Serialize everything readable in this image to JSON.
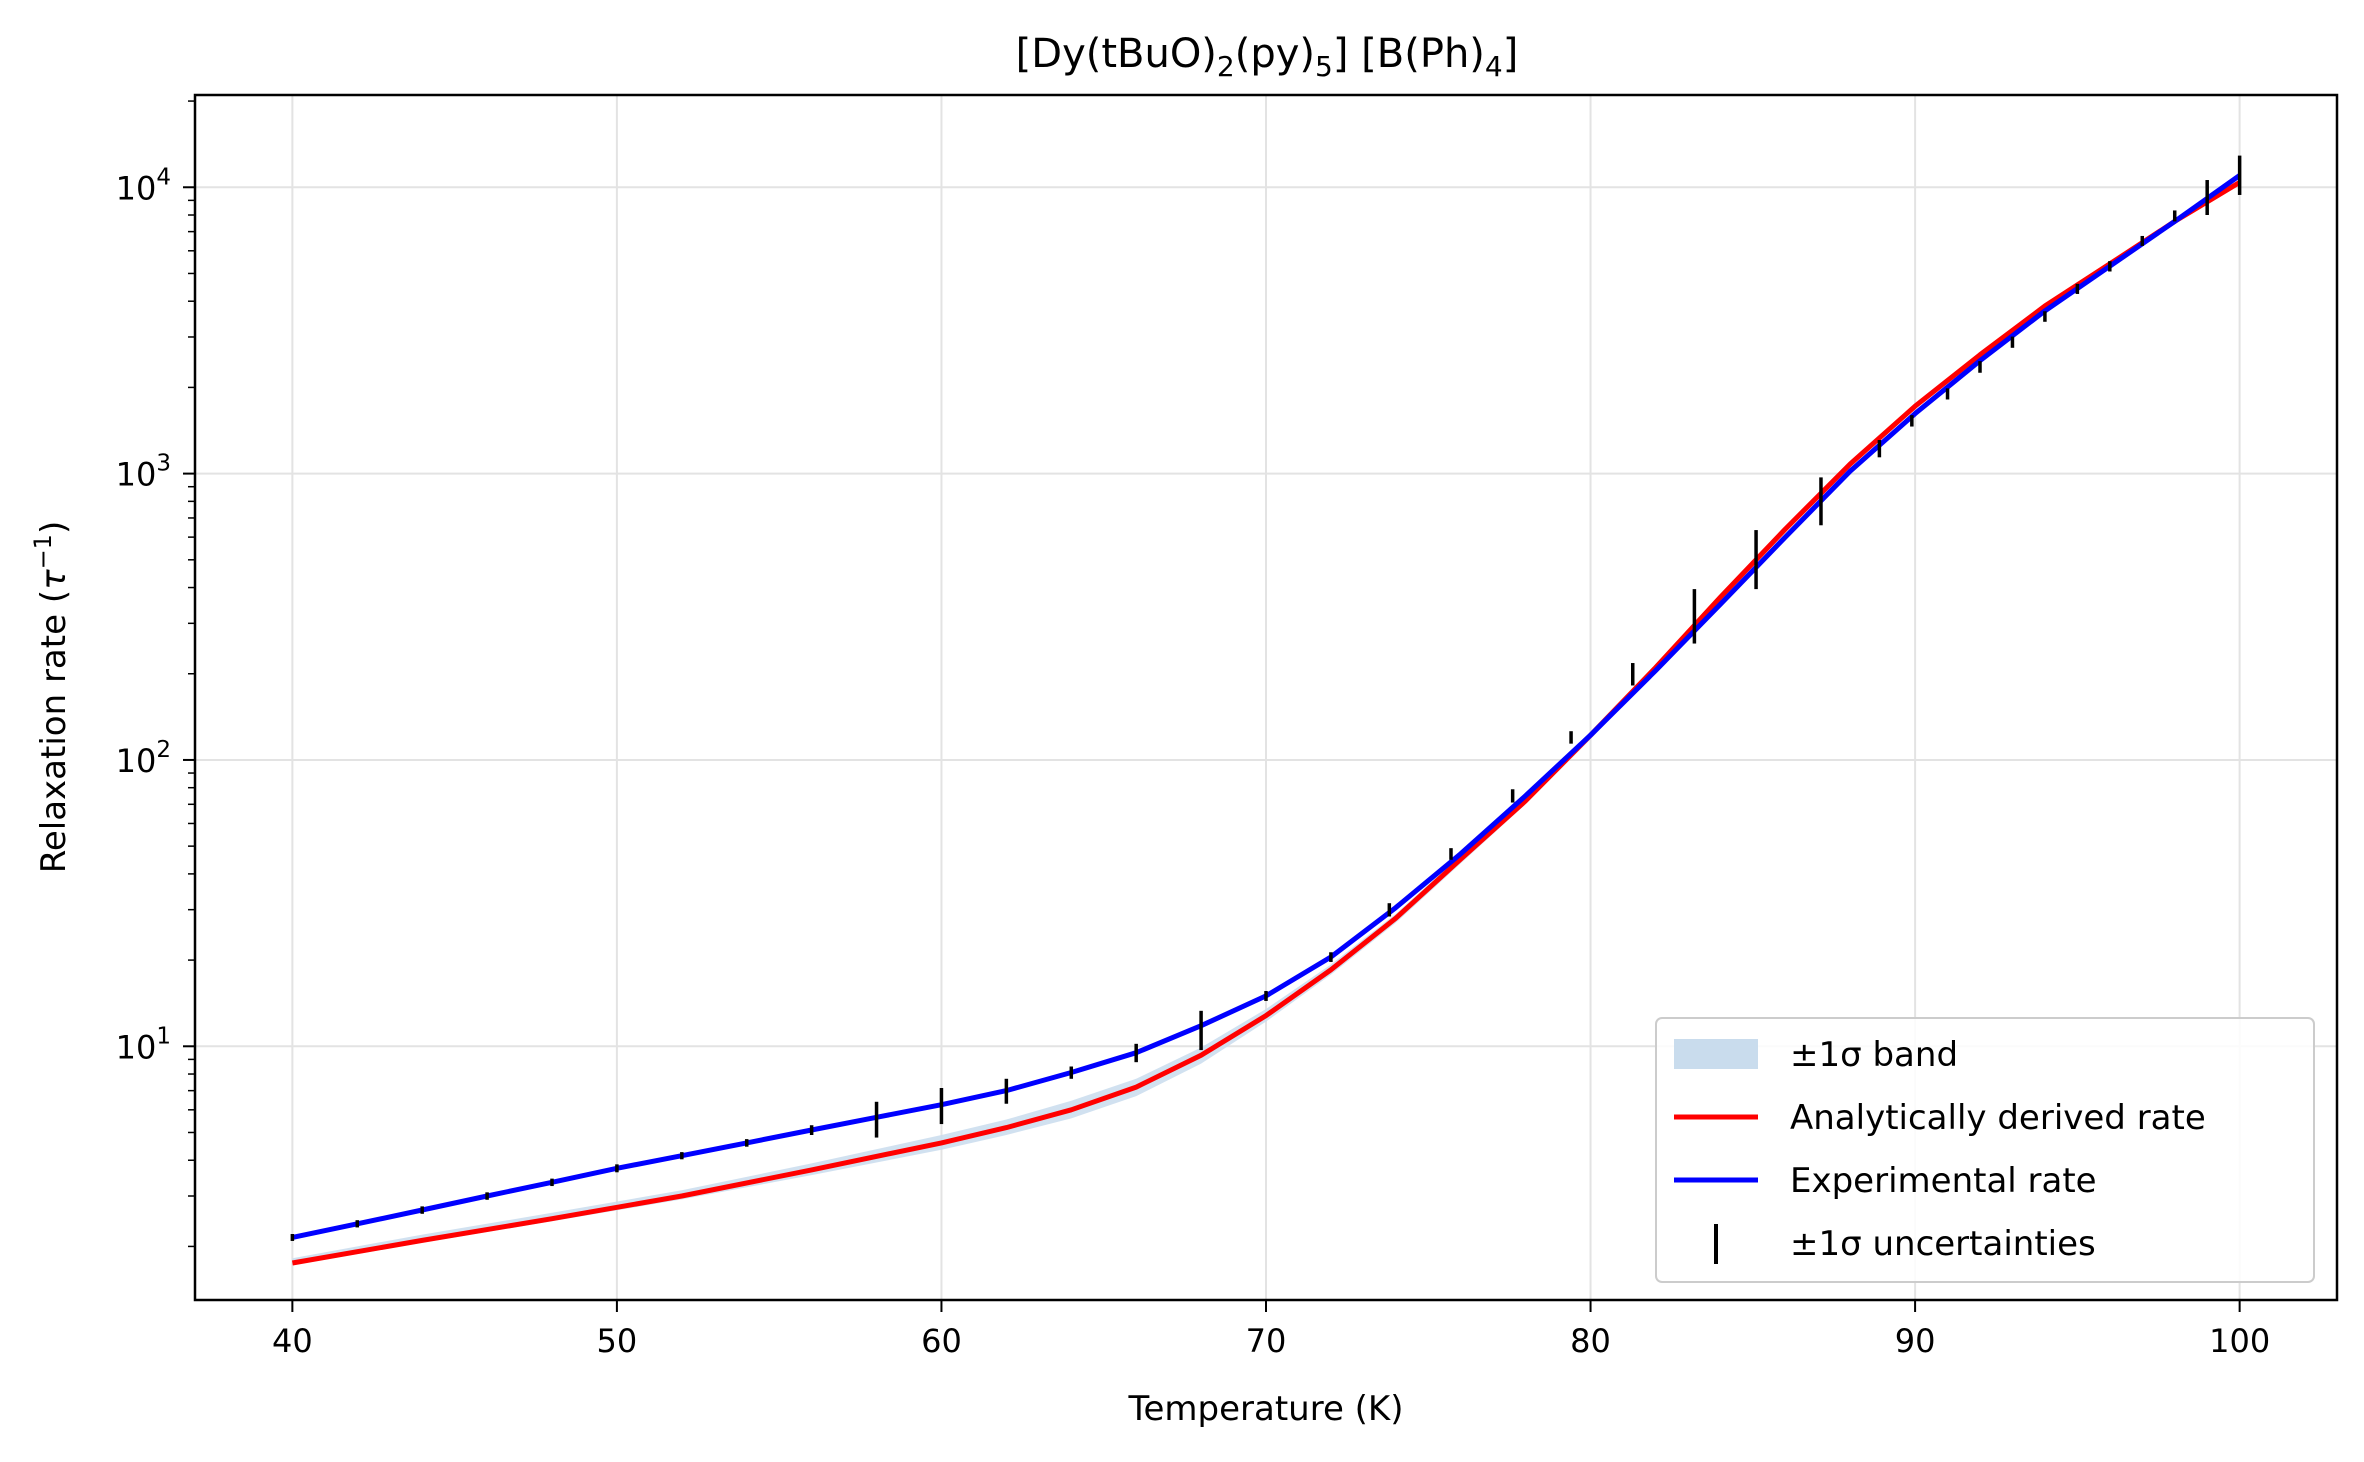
{
  "chart_data": {
    "type": "line",
    "title": {
      "base": "[Dy(tBuO)",
      "sub1": "2",
      "mid": "(py)",
      "sub2": "5",
      "tail": "] [B(Ph)",
      "sub3": "4",
      "end": "]"
    },
    "xlabel": "Temperature (K)",
    "ylabel": {
      "text": "Relaxation rate (",
      "sym": "τ",
      "sup": "−1",
      "close": ")"
    },
    "xlim": [
      37,
      103
    ],
    "ylim": [
      1.3,
      21000
    ],
    "yscale": "log",
    "grid": true,
    "legend_position": "lower-right",
    "x_ticks": [
      40,
      50,
      60,
      70,
      80,
      90,
      100
    ],
    "y_ticks": [
      {
        "value": 10,
        "base": "10",
        "exp": "1"
      },
      {
        "value": 100,
        "base": "10",
        "exp": "2"
      },
      {
        "value": 1000,
        "base": "10",
        "exp": "3"
      },
      {
        "value": 10000,
        "base": "10",
        "exp": "4"
      }
    ],
    "colors": {
      "band": "#c9dced",
      "analytic": "#ff0000",
      "experimental": "#0000ff",
      "errorbar": "#000000"
    },
    "series": [
      {
        "name": "Analytically derived rate",
        "x": [
          40,
          44,
          48,
          52,
          56,
          60,
          62,
          64,
          66,
          68,
          70,
          72,
          74,
          76,
          78,
          80,
          82,
          84,
          86,
          88,
          90,
          92,
          94,
          96,
          98,
          100
        ],
        "values": [
          1.75,
          2.1,
          2.5,
          3.0,
          3.7,
          4.6,
          5.2,
          6.0,
          7.2,
          9.3,
          12.8,
          18.5,
          28,
          45,
          72,
          122,
          210,
          370,
          640,
          1080,
          1720,
          2600,
          3850,
          5400,
          7600,
          10400
        ]
      },
      {
        "name": "Experimental rate",
        "x": [
          40,
          42,
          44,
          46,
          48,
          50,
          52,
          54,
          56,
          58,
          60,
          62,
          64,
          66,
          68,
          70,
          72,
          74,
          76,
          78,
          80,
          82,
          84,
          86,
          88,
          90,
          92,
          94,
          96,
          98,
          100
        ],
        "values": [
          2.15,
          2.4,
          2.68,
          3.0,
          3.35,
          3.75,
          4.15,
          4.6,
          5.1,
          5.65,
          6.25,
          7.0,
          8.1,
          9.5,
          11.8,
          15.0,
          20.5,
          30.5,
          47,
          75,
          122,
          205,
          350,
          600,
          1020,
          1620,
          2480,
          3700,
          5300,
          7600,
          11000
        ]
      }
    ],
    "band": {
      "name": "±1σ band",
      "x": [
        40,
        44,
        48,
        52,
        56,
        60,
        62,
        64,
        66,
        68,
        70,
        72,
        74,
        76,
        78,
        80,
        82,
        84,
        86,
        88,
        90,
        92,
        94,
        96,
        98,
        100
      ],
      "lower": [
        1.72,
        2.06,
        2.45,
        2.92,
        3.55,
        4.35,
        4.9,
        5.6,
        6.7,
        8.7,
        12.2,
        17.8,
        27,
        43.5,
        70,
        118,
        204,
        360,
        625,
        1055,
        1690,
        2560,
        3790,
        5330,
        7500,
        10250
      ],
      "upper": [
        1.82,
        2.2,
        2.62,
        3.14,
        3.9,
        4.9,
        5.55,
        6.45,
        7.7,
        9.9,
        13.5,
        19.3,
        29,
        46.5,
        74,
        126,
        216,
        380,
        655,
        1100,
        1760,
        2650,
        3920,
        5480,
        7720,
        10600
      ]
    },
    "errorbars": {
      "name": "±1σ uncertainties",
      "x": [
        40,
        42,
        44,
        46,
        48,
        50,
        52,
        54,
        56,
        58,
        60,
        62,
        64,
        66,
        68,
        70,
        72,
        73.8,
        75.7,
        77.6,
        79.4,
        81.3,
        83.2,
        85.1,
        87.1,
        88.9,
        89.9,
        91,
        92,
        93,
        94,
        95,
        96,
        97,
        98,
        99,
        100
      ],
      "y": [
        2.15,
        2.4,
        2.68,
        3.0,
        3.35,
        3.75,
        4.15,
        4.6,
        5.1,
        5.6,
        6.25,
        7.0,
        8.1,
        9.5,
        11.5,
        15.0,
        20.5,
        30,
        47,
        75,
        120,
        200,
        320,
        510,
        810,
        1220,
        1530,
        1900,
        2360,
        2880,
        3540,
        4420,
        5300,
        6500,
        7950,
        9300,
        11000
      ],
      "err_low": [
        0.06,
        0.07,
        0.08,
        0.09,
        0.1,
        0.12,
        0.12,
        0.14,
        0.2,
        0.8,
        0.9,
        0.7,
        0.4,
        0.7,
        1.8,
        0.6,
        0.8,
        1.6,
        2.2,
        4,
        6,
        18,
        65,
        115,
        150,
        80,
        70,
        85,
        110,
        130,
        150,
        180,
        220,
        260,
        350,
        1300,
        1600
      ],
      "err_high": [
        0.06,
        0.07,
        0.08,
        0.09,
        0.1,
        0.12,
        0.12,
        0.14,
        0.2,
        0.8,
        0.9,
        0.7,
        0.4,
        0.7,
        1.8,
        0.6,
        0.8,
        1.6,
        2.2,
        4,
        6,
        18,
        75,
        125,
        160,
        90,
        70,
        85,
        110,
        130,
        150,
        180,
        220,
        260,
        350,
        1300,
        1900
      ]
    },
    "legend": [
      {
        "key": "band",
        "label": "±1σ band"
      },
      {
        "key": "analytic",
        "label": "Analytically derived rate"
      },
      {
        "key": "experimental",
        "label": "Experimental rate"
      },
      {
        "key": "errorbar",
        "label": "±1σ uncertainties"
      }
    ]
  }
}
